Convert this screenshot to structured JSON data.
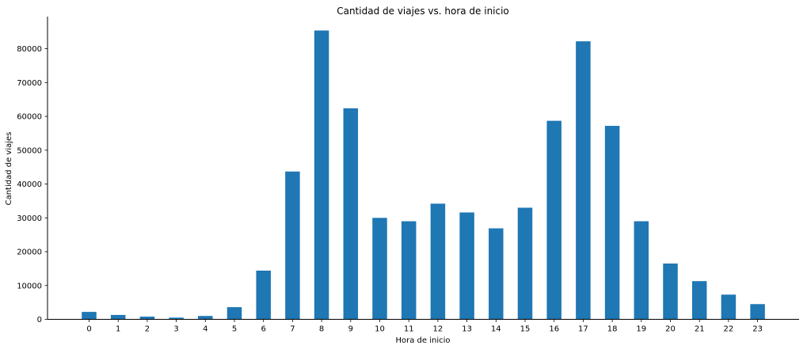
{
  "chart_data": {
    "type": "bar",
    "title": "Cantidad de viajes vs. hora de inicio",
    "xlabel": "Hora de inicio",
    "ylabel": "Cantidad de viajes",
    "categories": [
      "0",
      "1",
      "2",
      "3",
      "4",
      "5",
      "6",
      "7",
      "8",
      "9",
      "10",
      "11",
      "12",
      "13",
      "14",
      "15",
      "16",
      "17",
      "18",
      "19",
      "20",
      "21",
      "22",
      "23"
    ],
    "values": [
      2200,
      1300,
      800,
      500,
      1000,
      3600,
      14400,
      43700,
      85400,
      62400,
      30000,
      29000,
      34200,
      31600,
      26900,
      33000,
      58700,
      82200,
      57200,
      29000,
      16500,
      11300,
      7300,
      4500
    ],
    "yticks": [
      0,
      10000,
      20000,
      30000,
      40000,
      50000,
      60000,
      70000,
      80000
    ],
    "ylim": [
      0,
      89500
    ],
    "bar_color": "#1f77b4",
    "grid": false,
    "legend": false
  }
}
